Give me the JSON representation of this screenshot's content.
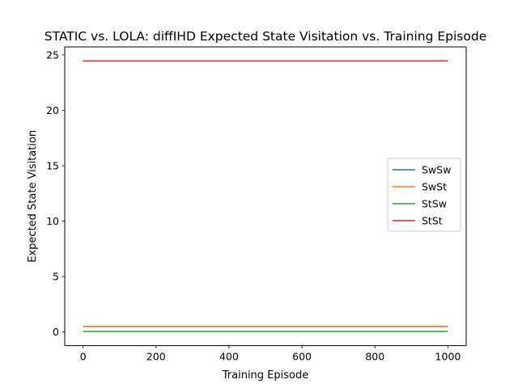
{
  "chart_data": {
    "type": "line",
    "title": "STATIC vs. LOLA: diffIHD Expected State Visitation vs. Training Episode",
    "xlabel": "Training Episode",
    "ylabel": "Expected State Visitation",
    "xlim": [
      -50,
      1050
    ],
    "ylim": [
      -1.23,
      25.72
    ],
    "xticks": [
      0,
      200,
      400,
      600,
      800,
      1000
    ],
    "yticks": [
      0,
      5,
      10,
      15,
      20,
      25
    ],
    "grid": false,
    "legend_position": "center-right",
    "series": [
      {
        "name": "SwSw",
        "color": "#1f77b4",
        "x": [
          0,
          1000
        ],
        "y": [
          0.5,
          0.5
        ]
      },
      {
        "name": "SwSt",
        "color": "#ff7f0e",
        "x": [
          0,
          1000
        ],
        "y": [
          0.5,
          0.5
        ]
      },
      {
        "name": "StSw",
        "color": "#2ca02c",
        "x": [
          0,
          1000
        ],
        "y": [
          0.05,
          0.05
        ]
      },
      {
        "name": "StSt",
        "color": "#d62728",
        "x": [
          0,
          1000
        ],
        "y": [
          24.45,
          24.45
        ]
      }
    ]
  }
}
